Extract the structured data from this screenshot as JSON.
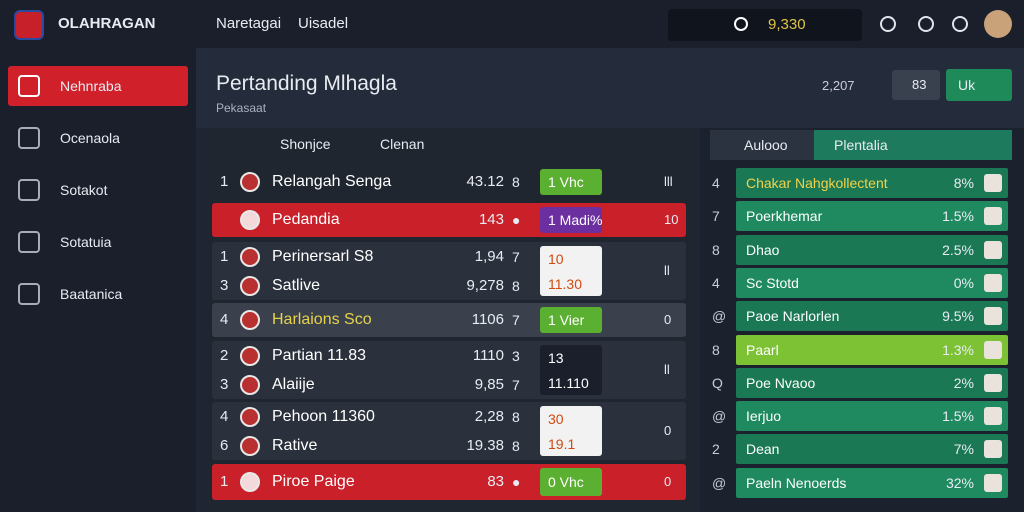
{
  "top_bar": {
    "brand": "OLAHRAGAN",
    "nav": [
      "Naretagai",
      "Uisadel"
    ],
    "search_value": "9,330"
  },
  "sidebar": {
    "items": [
      "Nehnraba",
      "Ocenaola",
      "Sotakot",
      "Sotatuia",
      "Baatanica"
    ],
    "active": 0
  },
  "main": {
    "title": "Pertanding Mlhagla",
    "subtitle": "Pekasaat",
    "count": "2,207",
    "filter": "83",
    "action": "Uk",
    "tabs": [
      "Shonjce",
      "Clenan"
    ],
    "groups": [
      {
        "style": "plain",
        "entries": [
          {
            "rank": "1",
            "name": "Relangah Senga",
            "score": "43.12",
            "count": "8"
          }
        ],
        "badge": [
          "1 Vhc"
        ],
        "badge_color": "green",
        "end": "lll"
      },
      {
        "style": "red",
        "entries": [
          {
            "rank": "",
            "name": "Pedandia",
            "score": "143",
            "count": "●"
          }
        ],
        "badge": [
          "1 Madi%"
        ],
        "badge_color": "purple",
        "end": "10"
      },
      {
        "style": "plain",
        "entries": [
          {
            "rank": "1",
            "name": "Perinersarl S8",
            "score": "1,94",
            "count": "7"
          },
          {
            "rank": "3",
            "name": "Satlive",
            "score": "9,278",
            "count": "8"
          }
        ],
        "badge": [
          "10",
          "11.30"
        ],
        "badge_color": "white",
        "end": "ll"
      },
      {
        "style": "highlight",
        "entries": [
          {
            "rank": "4",
            "name": "Harlaions Sco",
            "score": "1106",
            "count": "7"
          }
        ],
        "badge": [
          "1 Vier"
        ],
        "badge_color": "green",
        "end": "0"
      },
      {
        "style": "plain",
        "entries": [
          {
            "rank": "2",
            "name": "Partian 11.83",
            "score": "1110",
            "count": "3"
          },
          {
            "rank": "3",
            "name": "Alaiije",
            "score": "9,85",
            "count": "7"
          }
        ],
        "badge": [
          "13",
          "11.110"
        ],
        "badge_color": "dark",
        "end": "ll"
      },
      {
        "style": "plain",
        "entries": [
          {
            "rank": "4",
            "name": "Pehoon 11360",
            "score": "2,28",
            "count": "8"
          },
          {
            "rank": "6",
            "name": "Rative",
            "score": "19.38",
            "count": "8"
          }
        ],
        "badge": [
          "30",
          "19.1"
        ],
        "badge_color": "white",
        "end": "0"
      },
      {
        "style": "red",
        "entries": [
          {
            "rank": "1",
            "name": "Piroe Paige",
            "score": "83",
            "count": "●"
          }
        ],
        "badge": [
          "0 Vhc"
        ],
        "badge_color": "green",
        "end": "0"
      }
    ]
  },
  "side_panel": {
    "tabs": [
      "Aulooo",
      "Plentalia"
    ],
    "rows": [
      {
        "marker": "4",
        "name": "Chakar Nahgkollectent",
        "value": "8%"
      },
      {
        "marker": "7",
        "name": "Poerkhemar",
        "value": "1.5%"
      },
      {
        "marker": "8",
        "name": "Dhao",
        "value": "2.5%"
      },
      {
        "marker": "4",
        "name": "Sc Stotd",
        "value": "0%"
      },
      {
        "marker": "@",
        "name": "Paoe Narlorlen",
        "value": "9.5%"
      },
      {
        "marker": "8",
        "name": "Paarl",
        "value": "1.3%",
        "highlight": true
      },
      {
        "marker": "Q",
        "name": "Poe Nvaoo",
        "value": "2%"
      },
      {
        "marker": "@",
        "name": "Ierjuo",
        "value": "1.5%"
      },
      {
        "marker": "2",
        "name": "Dean",
        "value": "7%"
      },
      {
        "marker": "@",
        "name": "Paeln Nenoerds",
        "value": "32%"
      }
    ]
  }
}
